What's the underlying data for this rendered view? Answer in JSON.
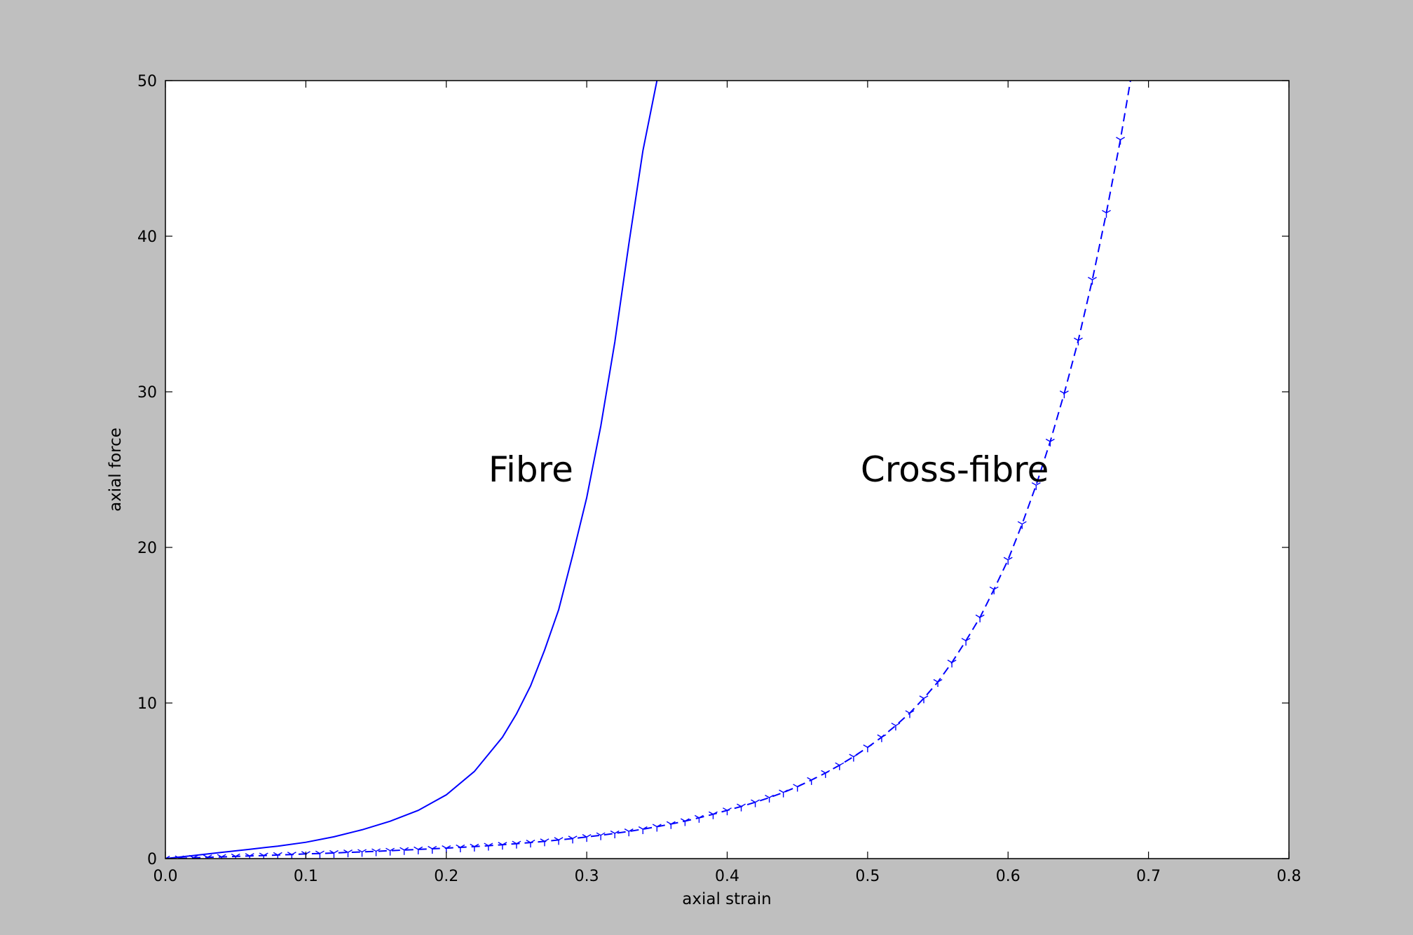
{
  "chart_data": {
    "type": "line",
    "title": "",
    "xlabel": "axial strain",
    "ylabel": "axial force",
    "xlim": [
      0.0,
      0.8
    ],
    "ylim": [
      0,
      50
    ],
    "xticks": [
      "0.0",
      "0.1",
      "0.2",
      "0.3",
      "0.4",
      "0.5",
      "0.6",
      "0.7",
      "0.8"
    ],
    "yticks": [
      "0",
      "10",
      "20",
      "30",
      "40",
      "50"
    ],
    "grid": false,
    "legend": "none",
    "annotations": [
      {
        "text": "Fibre",
        "x": 0.23,
        "y": 25
      },
      {
        "text": "Cross-fibre",
        "x": 0.495,
        "y": 25
      }
    ],
    "series": [
      {
        "line_style": "solid",
        "marker": "none",
        "color": "#0000ff",
        "x": [
          0.0,
          0.02,
          0.04,
          0.06,
          0.08,
          0.1,
          0.12,
          0.14,
          0.16,
          0.18,
          0.2,
          0.22,
          0.24,
          0.25,
          0.26,
          0.27,
          0.28,
          0.29,
          0.3,
          0.31,
          0.32,
          0.33,
          0.34,
          0.35,
          0.353
        ],
        "y": [
          0.0,
          0.2,
          0.4,
          0.6,
          0.8,
          1.05,
          1.4,
          1.85,
          2.4,
          3.1,
          4.1,
          5.6,
          7.8,
          9.3,
          11.1,
          13.4,
          16.0,
          19.5,
          23.2,
          27.8,
          33.2,
          39.5,
          45.5,
          50.0,
          51.0
        ]
      },
      {
        "line_style": "dashed",
        "marker": "tri",
        "color": "#0000ff",
        "x": [
          0.0,
          0.01,
          0.02,
          0.03,
          0.04,
          0.05,
          0.06,
          0.07,
          0.08,
          0.09,
          0.1,
          0.11,
          0.12,
          0.13,
          0.14,
          0.15,
          0.16,
          0.17,
          0.18,
          0.19,
          0.2,
          0.21,
          0.22,
          0.23,
          0.24,
          0.25,
          0.26,
          0.27,
          0.28,
          0.29,
          0.3,
          0.31,
          0.32,
          0.33,
          0.34,
          0.35,
          0.36,
          0.37,
          0.38,
          0.39,
          0.4,
          0.41,
          0.42,
          0.43,
          0.44,
          0.45,
          0.46,
          0.47,
          0.48,
          0.49,
          0.5,
          0.51,
          0.52,
          0.53,
          0.54,
          0.55,
          0.56,
          0.57,
          0.58,
          0.59,
          0.6,
          0.61,
          0.62,
          0.63,
          0.64,
          0.65,
          0.66,
          0.67,
          0.68,
          0.69,
          0.7
        ],
        "y": [
          0.0,
          0.02,
          0.05,
          0.08,
          0.11,
          0.14,
          0.17,
          0.2,
          0.23,
          0.26,
          0.3,
          0.33,
          0.36,
          0.4,
          0.43,
          0.47,
          0.51,
          0.55,
          0.59,
          0.63,
          0.67,
          0.72,
          0.77,
          0.83,
          0.89,
          0.96,
          1.03,
          1.11,
          1.2,
          1.29,
          1.39,
          1.5,
          1.62,
          1.75,
          1.89,
          2.05,
          2.22,
          2.41,
          2.62,
          2.85,
          3.1,
          3.35,
          3.62,
          3.92,
          4.25,
          4.62,
          5.05,
          5.5,
          6.0,
          6.55,
          7.15,
          7.8,
          8.55,
          9.35,
          10.3,
          11.35,
          12.6,
          14.0,
          15.5,
          17.3,
          19.2,
          21.5,
          24.0,
          26.8,
          29.9,
          33.3,
          37.2,
          41.5,
          46.2,
          51.5,
          52.0
        ]
      }
    ]
  }
}
